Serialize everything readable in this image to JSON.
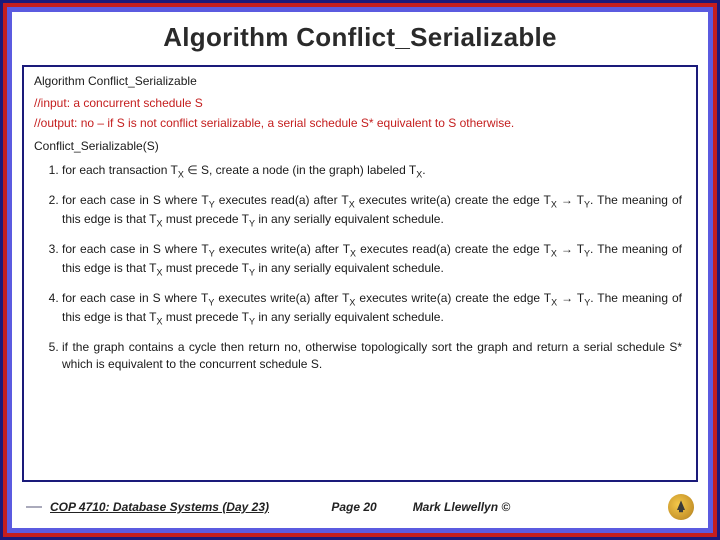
{
  "title": "Algorithm Conflict_Serializable",
  "box": {
    "algo_name": "Algorithm Conflict_Serializable",
    "input_comment": "//input:  a concurrent schedule S",
    "output_comment": "//output:  no – if S is not conflict serializable, a serial schedule S* equivalent to S otherwise.",
    "fn_decl": "Conflict_Serializable(S)",
    "steps": [
      "for each transaction T<sub class=\"sub\">X</sub> ∈ S, create a node (in the graph) labeled T<sub class=\"sub\">X</sub>.",
      "for each case in S where T<sub class=\"sub\">Y</sub> executes read(a) after T<sub class=\"sub\">X</sub> executes write(a) create the edge T<sub class=\"sub\">X</sub> → T<sub class=\"sub\">Y</sub>.  The meaning of this edge is that T<sub class=\"sub\">X</sub> must precede T<sub class=\"sub\">Y</sub> in any serially equivalent schedule.",
      "for each case in S where T<sub class=\"sub\">Y</sub> executes write(a) after T<sub class=\"sub\">X</sub> executes read(a) create the edge T<sub class=\"sub\">X</sub> → T<sub class=\"sub\">Y</sub>.  The meaning of this edge is that T<sub class=\"sub\">X</sub> must precede T<sub class=\"sub\">Y</sub> in any serially equivalent schedule.",
      "for each case in S where T<sub class=\"sub\">Y</sub> executes write(a) after T<sub class=\"sub\">X</sub> executes write(a) create the edge T<sub class=\"sub\">X</sub> → T<sub class=\"sub\">Y</sub>.  The meaning of this edge is that T<sub class=\"sub\">X</sub> must precede T<sub class=\"sub\">Y</sub> in any serially equivalent schedule.",
      "if the graph contains a cycle then return no, otherwise topologically sort the graph and return a serial schedule S* which is equivalent to the concurrent schedule S."
    ]
  },
  "footer": {
    "course": "COP 4710: Database Systems  (Day 23)",
    "page": "Page 20",
    "author": "Mark Llewellyn ©"
  },
  "colors": {
    "outer_border": "#1a1a7a",
    "red_border": "#c41e1e",
    "blue_border": "#5b5be0",
    "comment_text": "#c41e1e",
    "body_text": "#1a1a1a"
  }
}
